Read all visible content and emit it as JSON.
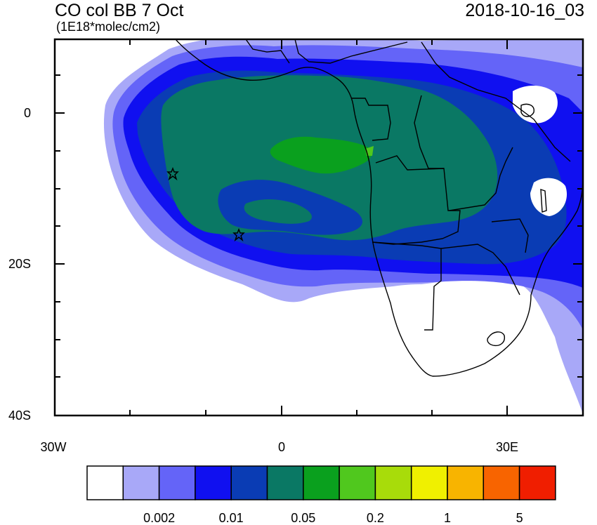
{
  "title": "CO col BB 7 Oct",
  "units": "(1E18*molec/cm2)",
  "timestamp": "2018-10-16_03",
  "y_axis": {
    "labels": [
      {
        "text": "0",
        "lat": 0
      },
      {
        "text": "20S",
        "lat": -20
      },
      {
        "text": "40S",
        "lat": -40
      }
    ]
  },
  "x_axis": {
    "labels": [
      {
        "text": "30W",
        "lon": -30
      },
      {
        "text": "0",
        "lon": 0
      },
      {
        "text": "30E",
        "lon": 30
      }
    ]
  },
  "colorbar": {
    "colors": [
      "#ffffff",
      "#a8a8f8",
      "#6464f8",
      "#1010f0",
      "#0a3cb4",
      "#0a7864",
      "#0aa01e",
      "#50c81e",
      "#a8dc0a",
      "#f0f000",
      "#f8b400",
      "#f86400",
      "#f01e00"
    ],
    "labels": [
      {
        "text": "0.002",
        "boundary": 2
      },
      {
        "text": "0.01",
        "boundary": 4
      },
      {
        "text": "0.05",
        "boundary": 6
      },
      {
        "text": "0.2",
        "boundary": 8
      },
      {
        "text": "1",
        "boundary": 10
      },
      {
        "text": "5",
        "boundary": 12
      }
    ]
  },
  "markers": [
    {
      "name": "star-marker-1",
      "lon": -14.4,
      "lat": -8.0
    },
    {
      "name": "star-marker-2",
      "lon": -5.7,
      "lat": -16.0
    }
  ]
}
